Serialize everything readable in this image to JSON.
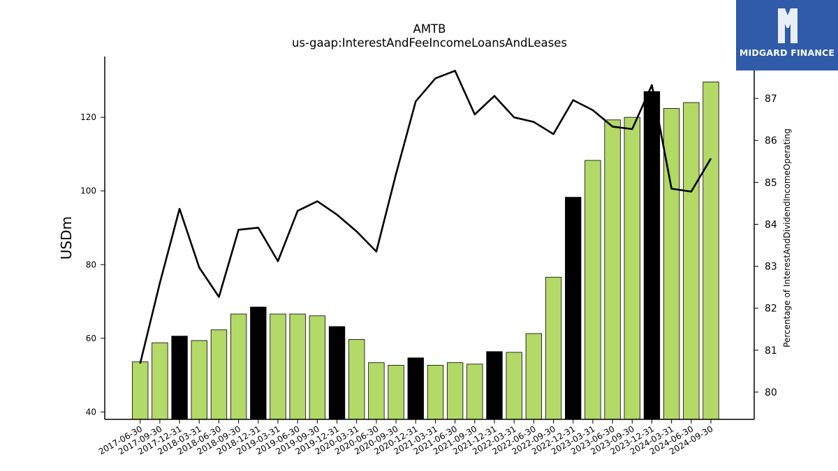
{
  "brand": {
    "name": "MIDGARD FINANCE",
    "bg_color": "#2f5ba8"
  },
  "chart_data": {
    "type": "bar",
    "title": "AMTB",
    "subtitle": "us-gaap:InterestAndFeeIncomeLoansAndLeases",
    "ylabel": "USDm",
    "y2label": "Percentage of InterestAndDividendIncomeOperating",
    "ylim": [
      38,
      136.5
    ],
    "y2lim": [
      79.35,
      88.0
    ],
    "yticks": [
      40,
      60,
      80,
      100,
      120
    ],
    "y2ticks": [
      80,
      81,
      82,
      83,
      84,
      85,
      86,
      87
    ],
    "grid": false,
    "categories": [
      "2017-06-30",
      "2017-09-30",
      "2017-12-31",
      "2018-03-31",
      "2018-06-30",
      "2018-09-30",
      "2018-12-31",
      "2019-03-31",
      "2019-06-30",
      "2019-09-30",
      "2019-12-31",
      "2020-03-31",
      "2020-06-30",
      "2020-09-30",
      "2020-12-31",
      "2021-03-31",
      "2021-06-30",
      "2021-09-30",
      "2021-12-31",
      "2022-03-31",
      "2022-06-30",
      "2022-09-30",
      "2022-12-31",
      "2023-03-31",
      "2023-06-30",
      "2023-09-30",
      "2023-12-31",
      "2024-03-31",
      "2024-06-30",
      "2024-09-30"
    ],
    "series": [
      {
        "kind": "bar",
        "axis": "left",
        "values": [
          53.6,
          58.8,
          60.6,
          59.4,
          62.3,
          66.6,
          68.5,
          66.6,
          66.6,
          66.1,
          63.2,
          59.7,
          53.4,
          52.7,
          54.7,
          52.7,
          53.4,
          53.0,
          56.4,
          56.2,
          61.3,
          76.6,
          98.3,
          108.3,
          119.3,
          120.0,
          127.0,
          122.4,
          124.0,
          129.6
        ],
        "colors": [
          "#b3d966",
          "#b3d966",
          "#000000",
          "#b3d966",
          "#b3d966",
          "#b3d966",
          "#000000",
          "#b3d966",
          "#b3d966",
          "#b3d966",
          "#000000",
          "#b3d966",
          "#b3d966",
          "#b3d966",
          "#000000",
          "#b3d966",
          "#b3d966",
          "#b3d966",
          "#000000",
          "#b3d966",
          "#b3d966",
          "#b3d966",
          "#000000",
          "#b3d966",
          "#b3d966",
          "#b3d966",
          "#000000",
          "#b3d966",
          "#b3d966",
          "#b3d966"
        ]
      },
      {
        "kind": "line",
        "axis": "right",
        "color": "#000000",
        "values": [
          80.68,
          82.6,
          84.37,
          82.97,
          82.27,
          83.87,
          83.92,
          83.12,
          84.32,
          84.55,
          84.23,
          83.83,
          83.35,
          85.2,
          86.93,
          87.48,
          87.66,
          86.62,
          87.06,
          86.55,
          86.44,
          86.15,
          86.96,
          86.72,
          86.33,
          86.27,
          87.32,
          84.85,
          84.78,
          85.57
        ]
      }
    ]
  }
}
